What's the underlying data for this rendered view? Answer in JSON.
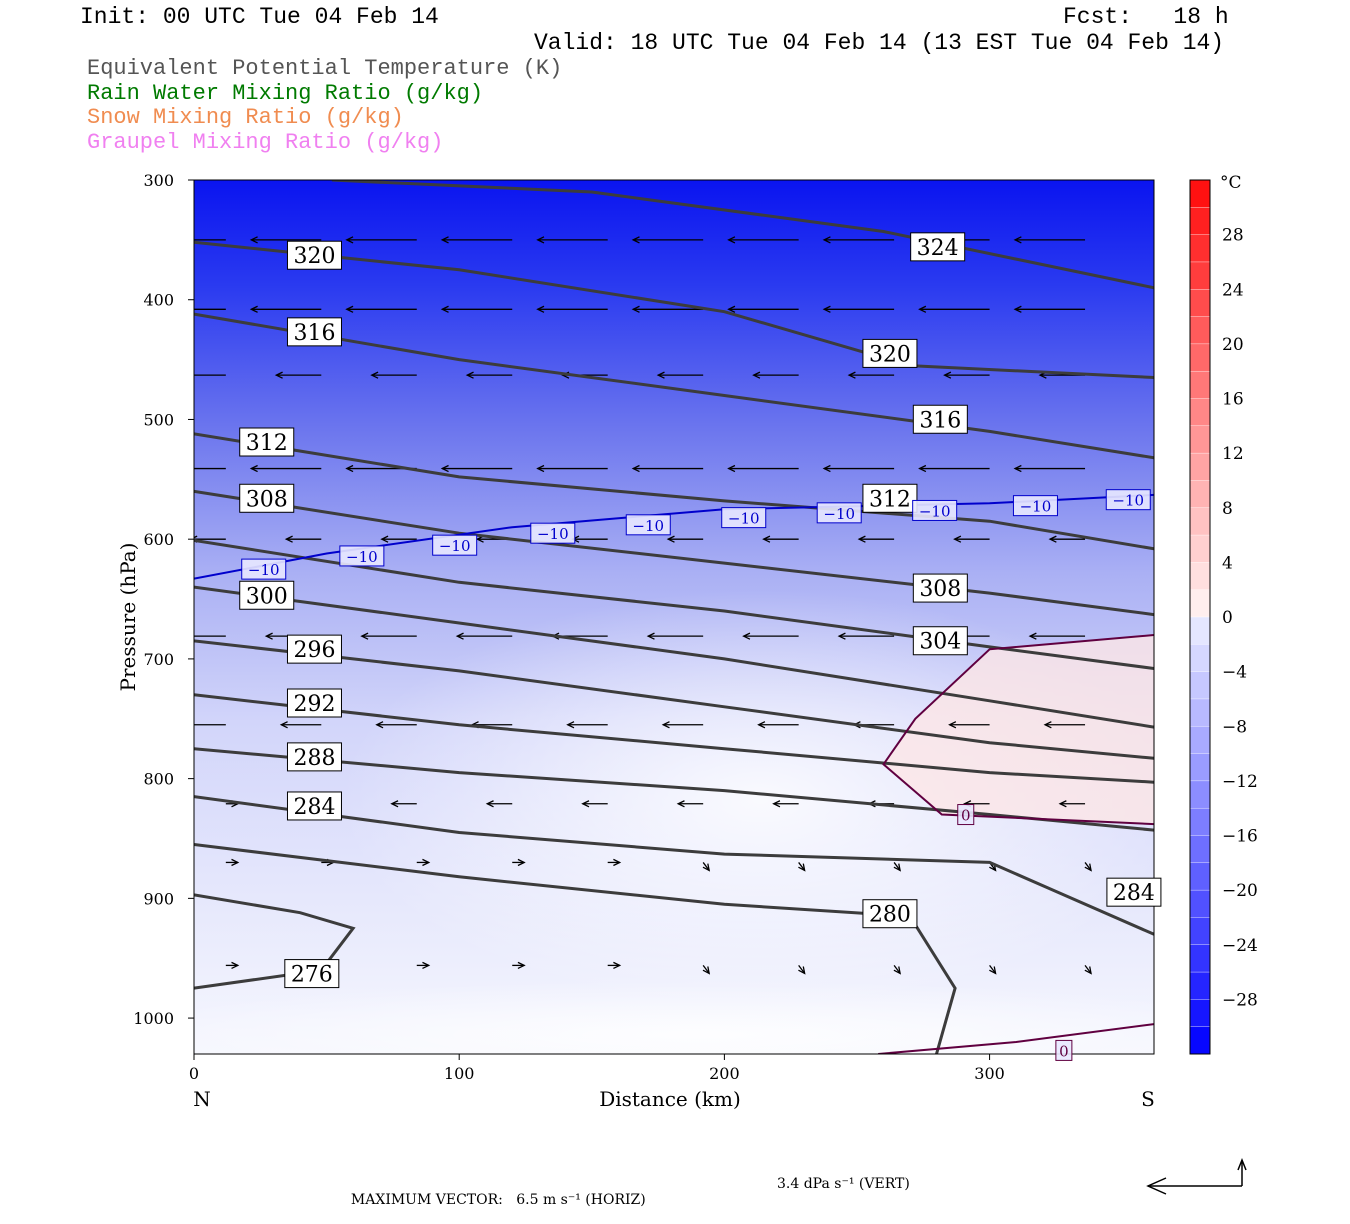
{
  "header": {
    "init": "Init: 00 UTC Tue 04 Feb 14",
    "fcst": "Fcst:   18 h",
    "valid": "Valid: 18 UTC Tue 04 Feb 14 (13 EST Tue 04 Feb 14)"
  },
  "legend": [
    {
      "label": "Equivalent Potential Temperature (K)",
      "color": "#555555"
    },
    {
      "label": "Rain Water Mixing Ratio (g/kg)",
      "color": "#007a00"
    },
    {
      "label": "Snow Mixing Ratio (g/kg)",
      "color": "#f08c50"
    },
    {
      "label": "Graupel Mixing Ratio (g/kg)",
      "color": "#f080f0"
    }
  ],
  "chart_data": {
    "type": "cross-section",
    "shaded_field": "Temperature (°C)",
    "xlabel": "Distance (km)",
    "ylabel": "Pressure (hPa)",
    "xlim": [
      0,
      362
    ],
    "ylim": [
      300,
      1030
    ],
    "xticks": [
      0,
      100,
      200,
      300
    ],
    "yticks": [
      300,
      400,
      500,
      600,
      700,
      800,
      900,
      1000
    ],
    "x_end_labels": {
      "left": "N",
      "right": "S"
    },
    "colorbar": {
      "unit": "°C",
      "range": [
        -32,
        32
      ],
      "ticks": [
        28,
        24,
        20,
        16,
        12,
        8,
        4,
        0,
        -4,
        -8,
        -12,
        -16,
        -20,
        -24,
        -28
      ]
    },
    "theta_e_contours": [
      {
        "value": 324,
        "points": [
          [
            52,
            300
          ],
          [
            150,
            310
          ],
          [
            260,
            343
          ],
          [
            362,
            390
          ]
        ],
        "label": {
          "text": "324",
          "at": [
            271,
            355
          ]
        }
      },
      {
        "value": 320,
        "points": [
          [
            0,
            352
          ],
          [
            100,
            375
          ],
          [
            200,
            410
          ],
          [
            270,
            455
          ],
          [
            362,
            465
          ]
        ],
        "labels": [
          {
            "text": "320",
            "at": [
              36,
              362
            ]
          },
          {
            "text": "320",
            "at": [
              253,
              444
            ]
          }
        ]
      },
      {
        "value": 316,
        "points": [
          [
            0,
            412
          ],
          [
            100,
            450
          ],
          [
            200,
            480
          ],
          [
            300,
            510
          ],
          [
            362,
            532
          ]
        ],
        "labels": [
          {
            "text": "316",
            "at": [
              36,
              426
            ]
          },
          {
            "text": "316",
            "at": [
              272,
              499
            ]
          }
        ]
      },
      {
        "value": 312,
        "points": [
          [
            0,
            512
          ],
          [
            100,
            548
          ],
          [
            200,
            568
          ],
          [
            300,
            585
          ],
          [
            362,
            608
          ]
        ],
        "labels": [
          {
            "text": "312",
            "at": [
              18,
              518
            ]
          },
          {
            "text": "312",
            "at": [
              253,
              565
            ]
          }
        ]
      },
      {
        "value": 308,
        "points": [
          [
            0,
            560
          ],
          [
            100,
            595
          ],
          [
            200,
            620
          ],
          [
            300,
            645
          ],
          [
            362,
            663
          ]
        ],
        "labels": [
          {
            "text": "308",
            "at": [
              18,
              565
            ]
          },
          {
            "text": "308",
            "at": [
              272,
              640
            ]
          }
        ]
      },
      {
        "value": 304,
        "points": [
          [
            0,
            601
          ],
          [
            100,
            636
          ],
          [
            200,
            660
          ],
          [
            300,
            690
          ],
          [
            362,
            708
          ]
        ],
        "label": {
          "text": "304",
          "at": [
            272,
            684
          ]
        }
      },
      {
        "value": 300,
        "points": [
          [
            0,
            640
          ],
          [
            100,
            670
          ],
          [
            200,
            700
          ],
          [
            300,
            735
          ],
          [
            362,
            757
          ]
        ],
        "label": {
          "text": "300",
          "at": [
            18,
            646
          ]
        }
      },
      {
        "value": 296,
        "points": [
          [
            0,
            685
          ],
          [
            100,
            710
          ],
          [
            200,
            740
          ],
          [
            300,
            770
          ],
          [
            362,
            783
          ]
        ],
        "label": {
          "text": "296",
          "at": [
            36,
            691
          ]
        }
      },
      {
        "value": 292,
        "points": [
          [
            0,
            730
          ],
          [
            100,
            755
          ],
          [
            200,
            775
          ],
          [
            300,
            795
          ],
          [
            362,
            803
          ]
        ],
        "label": {
          "text": "292",
          "at": [
            36,
            736
          ]
        }
      },
      {
        "value": 288,
        "points": [
          [
            0,
            775
          ],
          [
            100,
            795
          ],
          [
            200,
            810
          ],
          [
            300,
            830
          ],
          [
            362,
            843
          ]
        ],
        "label": {
          "text": "288",
          "at": [
            36,
            781
          ]
        }
      },
      {
        "value": 284,
        "points": [
          [
            0,
            815
          ],
          [
            100,
            845
          ],
          [
            200,
            863
          ],
          [
            300,
            870
          ],
          [
            362,
            930
          ]
        ],
        "labels": [
          {
            "text": "284",
            "at": [
              36,
              822
            ]
          },
          {
            "text": "284",
            "at": [
              345,
              894
            ]
          }
        ]
      },
      {
        "value": 280,
        "points": [
          [
            0,
            855
          ],
          [
            100,
            882
          ],
          [
            200,
            905
          ],
          [
            270,
            915
          ],
          [
            287,
            975
          ],
          [
            280,
            1030
          ]
        ],
        "label": {
          "text": "280",
          "at": [
            253,
            912
          ]
        }
      },
      {
        "value": 276,
        "points": [
          [
            0,
            897
          ],
          [
            40,
            912
          ],
          [
            60,
            925
          ],
          [
            48,
            960
          ],
          [
            0,
            975
          ]
        ],
        "label": {
          "text": "276",
          "at": [
            35,
            962
          ]
        }
      }
    ],
    "isotherms": [
      {
        "value": -10,
        "color": "#0000cc",
        "points": [
          [
            0,
            633
          ],
          [
            50,
            612
          ],
          [
            120,
            590
          ],
          [
            200,
            575
          ],
          [
            300,
            570
          ],
          [
            362,
            563
          ]
        ],
        "labels_at": [
          [
            18,
            625
          ],
          [
            55,
            614
          ],
          [
            90,
            605
          ],
          [
            127,
            595
          ],
          [
            163,
            588
          ],
          [
            199,
            582
          ],
          [
            235,
            578
          ],
          [
            271,
            576
          ],
          [
            309,
            572
          ],
          [
            344,
            567
          ]
        ]
      },
      {
        "value": 0,
        "color": "#600040",
        "points": [
          [
            362,
            680
          ],
          [
            300,
            692
          ],
          [
            272,
            750
          ],
          [
            260,
            788
          ],
          [
            282,
            830
          ],
          [
            362,
            838
          ]
        ],
        "labels_at": [
          [
            288,
            830
          ]
        ]
      },
      {
        "value": 0,
        "color": "#600040",
        "points": [
          [
            258,
            1030
          ],
          [
            310,
            1020
          ],
          [
            362,
            1005
          ]
        ],
        "labels_at": [
          [
            325,
            1027
          ]
        ]
      }
    ]
  },
  "footer": {
    "horiz": "MAXIMUM VECTOR:   6.5 m s⁻¹ (HORIZ)",
    "vert": "3.4 dPa s⁻¹ (VERT)"
  }
}
